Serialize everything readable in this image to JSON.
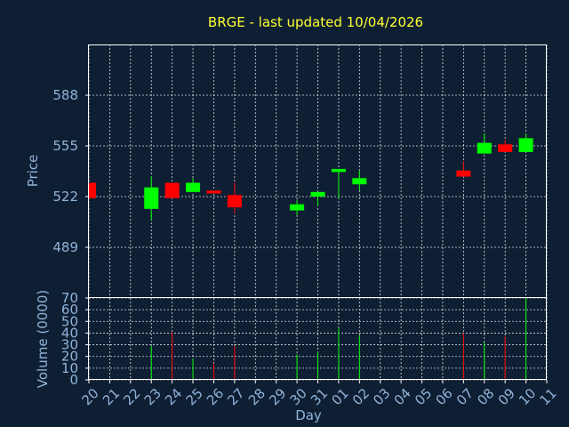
{
  "chart_data": {
    "type": "candlestick",
    "title": "BRGE - last updated 10/04/2026",
    "xlabel": "Day",
    "price_panel": {
      "ylabel": "Price",
      "yticks": [
        489,
        522,
        555,
        588
      ],
      "ylim": [
        456,
        621
      ]
    },
    "volume_panel": {
      "ylabel": "Volume (0000)",
      "yticks": [
        0,
        10,
        20,
        30,
        40,
        50,
        60,
        70
      ],
      "ylim": [
        0,
        70
      ]
    },
    "x_tick_labels": [
      "20",
      "21",
      "22",
      "23",
      "24",
      "25",
      "26",
      "27",
      "28",
      "29",
      "30",
      "31",
      "01",
      "02",
      "03",
      "04",
      "05",
      "06",
      "07",
      "08",
      "09",
      "10",
      "11"
    ],
    "candles": [
      {
        "day": "20",
        "open": 531,
        "high": 531,
        "low": 521,
        "close": 521,
        "volume": 0
      },
      {
        "day": "23",
        "open": 514,
        "high": 535,
        "low": 507,
        "close": 528,
        "volume": 29
      },
      {
        "day": "24",
        "open": 531,
        "high": 531,
        "low": 521,
        "close": 521,
        "volume": 41
      },
      {
        "day": "25",
        "open": 525,
        "high": 534,
        "low": 525,
        "close": 531,
        "volume": 18
      },
      {
        "day": "26",
        "open": 526,
        "high": 526,
        "low": 524,
        "close": 524,
        "volume": 14
      },
      {
        "day": "27",
        "open": 523,
        "high": 531,
        "low": 511,
        "close": 515,
        "volume": 29
      },
      {
        "day": "30",
        "open": 513,
        "high": 520,
        "low": 510,
        "close": 517,
        "volume": 22
      },
      {
        "day": "31",
        "open": 522,
        "high": 525,
        "low": 516,
        "close": 525,
        "volume": 24
      },
      {
        "day": "01",
        "open": 538,
        "high": 540,
        "low": 521,
        "close": 540,
        "volume": 44
      },
      {
        "day": "02",
        "open": 530,
        "high": 539,
        "low": 526,
        "close": 534,
        "volume": 38
      },
      {
        "day": "07",
        "open": 539,
        "high": 545,
        "low": 535,
        "close": 535,
        "volume": 40
      },
      {
        "day": "08",
        "open": 550,
        "high": 563,
        "low": 550,
        "close": 557,
        "volume": 32
      },
      {
        "day": "09",
        "open": 556,
        "high": 559,
        "low": 551,
        "close": 551,
        "volume": 37
      },
      {
        "day": "10",
        "open": 551,
        "high": 563,
        "low": 551,
        "close": 560,
        "volume": 70
      }
    ],
    "colors": {
      "up": "#00ff00",
      "down": "#ff0000",
      "background": "#0f1f33",
      "title": "#ffff33",
      "axis_text": "#8fb3d9",
      "grid": "#ffffff"
    },
    "grid": true
  }
}
